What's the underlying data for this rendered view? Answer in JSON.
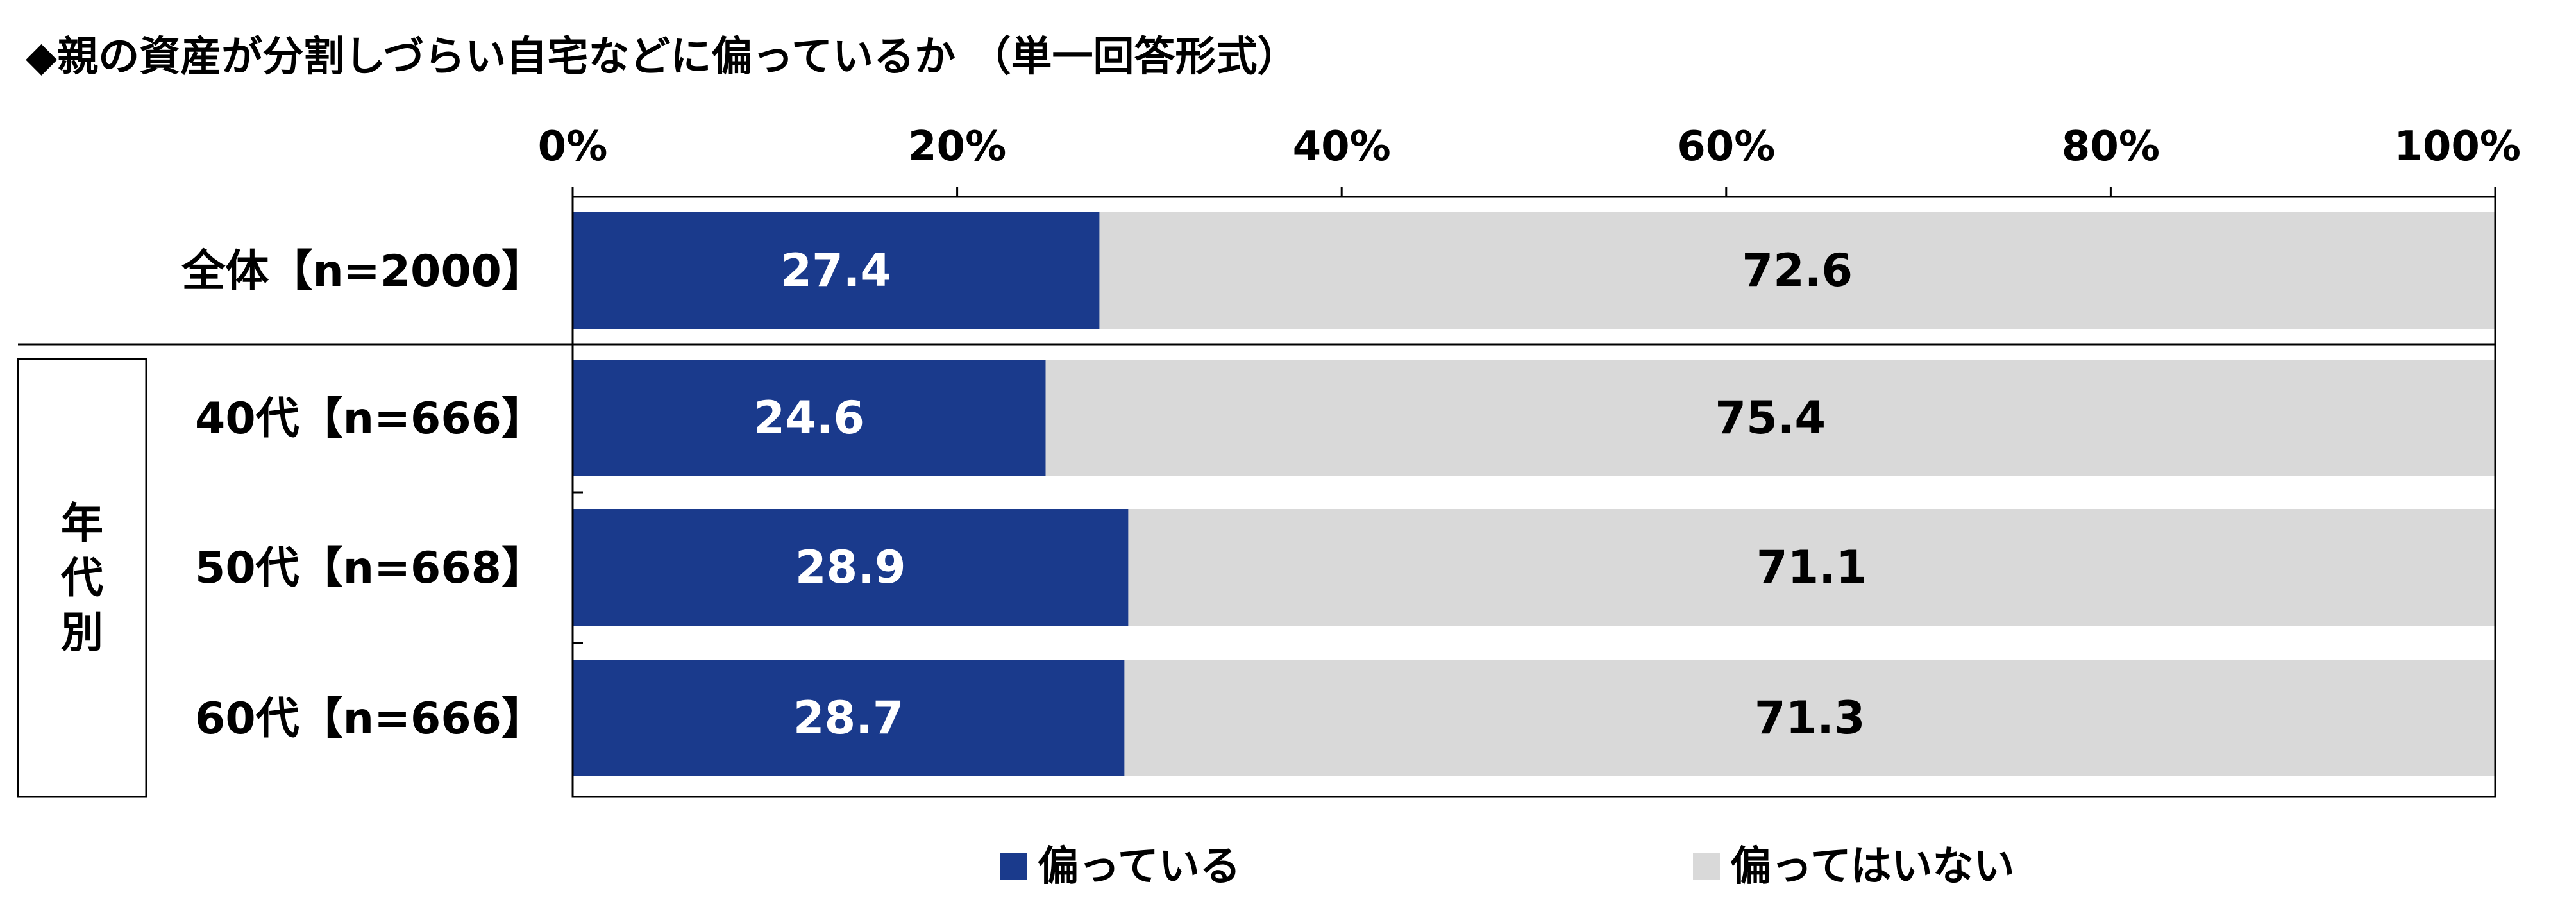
{
  "chart_data": {
    "type": "bar",
    "stacked": true,
    "orientation": "horizontal",
    "title": "◆親の資産が分割しづらい自宅などに偏っているか （単一回答形式）",
    "categories": [
      "全体【n=2000】",
      "40代【n=666】",
      "50代【n=668】",
      "60代【n=666】"
    ],
    "group_label": "年代別",
    "series": [
      {
        "name": "偏っている",
        "values": [
          27.4,
          24.6,
          28.9,
          28.7
        ],
        "labels": [
          "27.4",
          "24.6",
          "28.9",
          "28.7"
        ],
        "color": "#1a3a8c"
      },
      {
        "name": "偏ってはいない",
        "values": [
          72.6,
          75.4,
          71.1,
          71.3
        ],
        "labels": [
          "72.6",
          "75.4",
          "71.1",
          "71.3"
        ],
        "color": "#d9d9d9"
      }
    ],
    "xlim": [
      0,
      100
    ],
    "xticks": [
      "0%",
      "20%",
      "40%",
      "60%",
      "80%",
      "100%"
    ],
    "xlabel": "",
    "ylabel": "",
    "legend_position": "bottom",
    "grid": false
  }
}
